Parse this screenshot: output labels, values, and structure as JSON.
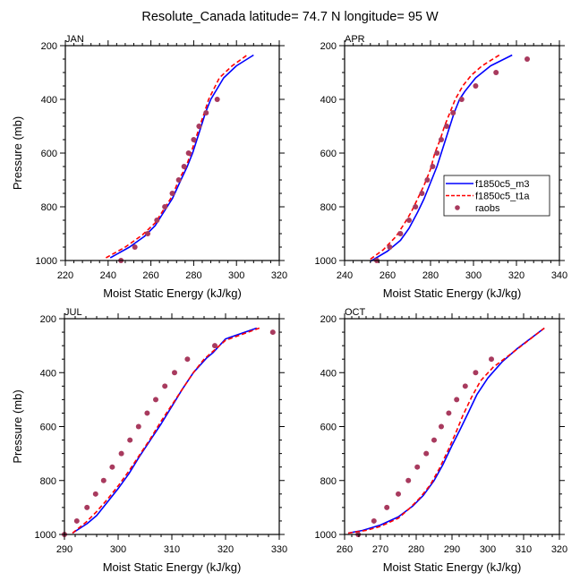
{
  "figure": {
    "title": "Resolute_Canada  latitude= 74.7 N longitude= 95 W"
  },
  "chart_data": [
    {
      "type": "line",
      "panel": "JAN",
      "title": "JAN",
      "xlabel": "Moist Static Energy (kJ/kg)",
      "ylabel": "Pressure (mb)",
      "xlim": [
        220,
        320
      ],
      "ylim": [
        1000,
        200
      ],
      "y_inverted": true,
      "xticks": [
        220,
        240,
        260,
        280,
        300,
        320
      ],
      "yticks": [
        200,
        400,
        600,
        800,
        1000
      ],
      "legend": null,
      "series": [
        {
          "name": "f1850c5_m3",
          "style": "solid",
          "color": "#0000ff",
          "x": [
            241,
            250,
            257,
            262,
            266,
            270,
            274,
            277,
            279.5,
            281.5,
            283.5,
            285.5,
            288,
            294,
            300,
            308
          ],
          "y": [
            990,
            950,
            910,
            870,
            820,
            770,
            700,
            650,
            600,
            550,
            500,
            450,
            400,
            320,
            275,
            235
          ]
        },
        {
          "name": "f1850c5_t1a",
          "style": "dashed",
          "color": "#ff0000",
          "x": [
            239,
            248,
            256,
            262,
            266,
            270,
            273,
            276.5,
            278.7,
            280.8,
            282.8,
            285,
            287,
            292,
            298,
            305
          ],
          "y": [
            990,
            950,
            905,
            860,
            810,
            760,
            700,
            650,
            600,
            550,
            500,
            450,
            400,
            320,
            275,
            235
          ]
        },
        {
          "name": "raobs",
          "style": "markers",
          "color": "#a83a5e",
          "x": [
            246,
            252.5,
            258.5,
            262.8,
            266.5,
            270,
            273,
            275.5,
            277.6,
            280,
            282.5,
            285.8,
            291
          ],
          "y": [
            1000,
            950,
            900,
            850,
            800,
            750,
            700,
            650,
            600,
            550,
            500,
            450,
            400
          ]
        }
      ]
    },
    {
      "type": "line",
      "panel": "APR",
      "title": "APR",
      "xlabel": "Moist Static Energy (kJ/kg)",
      "ylabel": "",
      "xlim": [
        240,
        340
      ],
      "ylim": [
        1000,
        200
      ],
      "y_inverted": true,
      "xticks": [
        240,
        260,
        280,
        300,
        320,
        340
      ],
      "yticks": [
        200,
        400,
        600,
        800,
        1000
      ],
      "legend": {
        "placement": "lower-right",
        "entries": [
          {
            "label": "f1850c5_m3",
            "style": "solid",
            "color": "#0000ff"
          },
          {
            "label": "f1850c5_t1a",
            "style": "dashed",
            "color": "#ff0000"
          },
          {
            "label": "raobs",
            "style": "markers",
            "color": "#a83a5e"
          }
        ]
      },
      "series": [
        {
          "name": "f1850c5_m3",
          "style": "solid",
          "color": "#0000ff",
          "x": [
            252,
            260,
            266,
            270,
            274,
            277,
            280,
            283,
            285,
            287,
            289,
            291,
            293.5,
            296,
            301,
            308,
            318
          ],
          "y": [
            1003,
            965,
            925,
            880,
            820,
            770,
            710,
            650,
            600,
            550,
            500,
            450,
            400,
            370,
            320,
            275,
            235
          ]
        },
        {
          "name": "f1850c5_t1a",
          "style": "dashed",
          "color": "#ff0000",
          "x": [
            252,
            258,
            264,
            268,
            271,
            274,
            277,
            280,
            282,
            284.5,
            286.5,
            289,
            291.5,
            295,
            299,
            304,
            312
          ],
          "y": [
            995,
            960,
            910,
            860,
            820,
            770,
            720,
            660,
            600,
            550,
            500,
            450,
            400,
            350,
            310,
            275,
            235
          ]
        },
        {
          "name": "raobs",
          "style": "markers",
          "color": "#a83a5e",
          "x": [
            255,
            261,
            266,
            270,
            273,
            276,
            278.5,
            281,
            283,
            285,
            287.5,
            290.5,
            294.5,
            301,
            310.5,
            325
          ],
          "y": [
            1000,
            950,
            900,
            850,
            800,
            750,
            700,
            650,
            600,
            550,
            500,
            450,
            400,
            350,
            300,
            250
          ]
        }
      ]
    },
    {
      "type": "line",
      "panel": "JUL",
      "title": "JUL",
      "xlabel": "Moist Static Energy (kJ/kg)",
      "ylabel": "Pressure (mb)",
      "xlim": [
        290,
        330
      ],
      "ylim": [
        1000,
        200
      ],
      "y_inverted": true,
      "xticks": [
        290,
        300,
        310,
        320,
        330
      ],
      "yticks": [
        200,
        400,
        600,
        800,
        1000
      ],
      "legend": null,
      "series": [
        {
          "name": "f1850c5_m3",
          "style": "solid",
          "color": "#0000ff",
          "x": [
            291.5,
            294.2,
            296,
            298,
            300,
            302,
            304,
            306,
            308,
            310,
            312,
            314,
            316.5,
            317.7,
            320,
            325.8
          ],
          "y": [
            995,
            960,
            930,
            880,
            830,
            775,
            710,
            650,
            590,
            525,
            460,
            400,
            345,
            325,
            275,
            235
          ]
        },
        {
          "name": "f1850c5_t1a",
          "style": "dashed",
          "color": "#ff0000",
          "x": [
            291.5,
            294,
            296,
            298,
            300,
            302,
            304,
            306,
            308,
            310,
            312,
            314,
            316,
            320,
            326.3
          ],
          "y": [
            995,
            955,
            915,
            870,
            820,
            765,
            705,
            645,
            580,
            520,
            460,
            400,
            350,
            280,
            235
          ]
        },
        {
          "name": "raobs",
          "style": "markers",
          "color": "#a83a5e",
          "x": [
            290,
            292.3,
            294.2,
            295.8,
            297.3,
            298.9,
            300.6,
            302.2,
            303.8,
            305.4,
            307,
            308.7,
            310.5,
            312.9,
            318,
            328.8
          ],
          "y": [
            1000,
            950,
            900,
            850,
            800,
            750,
            700,
            650,
            600,
            550,
            500,
            450,
            400,
            350,
            300,
            250
          ]
        }
      ]
    },
    {
      "type": "line",
      "panel": "OCT",
      "title": "OCT",
      "xlabel": "Moist Static Energy (kJ/kg)",
      "ylabel": "",
      "xlim": [
        260,
        320
      ],
      "ylim": [
        1000,
        200
      ],
      "y_inverted": true,
      "xticks": [
        260,
        270,
        280,
        290,
        300,
        310,
        320
      ],
      "yticks": [
        200,
        400,
        600,
        800,
        1000
      ],
      "legend": null,
      "series": [
        {
          "name": "f1850c5_m3",
          "style": "solid",
          "color": "#0000ff",
          "x": [
            261,
            265,
            270,
            275,
            279,
            282,
            285,
            287.5,
            290,
            292.3,
            294.5,
            297,
            300,
            304,
            308.3,
            315.8
          ],
          "y": [
            995,
            985,
            965,
            935,
            895,
            855,
            800,
            740,
            670,
            610,
            550,
            480,
            420,
            360,
            310,
            235
          ]
        },
        {
          "name": "f1850c5_t1a",
          "style": "dashed",
          "color": "#ff0000",
          "x": [
            261,
            266,
            270,
            275,
            278,
            281,
            284,
            286.5,
            289,
            291,
            293,
            295.5,
            298,
            301.5,
            305,
            308.5,
            315.8
          ],
          "y": [
            995,
            985,
            970,
            940,
            905,
            865,
            815,
            755,
            685,
            625,
            560,
            490,
            430,
            380,
            345,
            310,
            235
          ]
        },
        {
          "name": "raobs",
          "style": "markers",
          "color": "#a83a5e",
          "x": [
            263.8,
            268.2,
            271.8,
            275,
            277.8,
            280.3,
            282.8,
            285,
            287,
            289.1,
            291.3,
            293.7,
            296.6,
            301
          ],
          "y": [
            1000,
            950,
            900,
            850,
            800,
            750,
            700,
            650,
            600,
            550,
            500,
            450,
            400,
            350
          ]
        }
      ]
    }
  ]
}
